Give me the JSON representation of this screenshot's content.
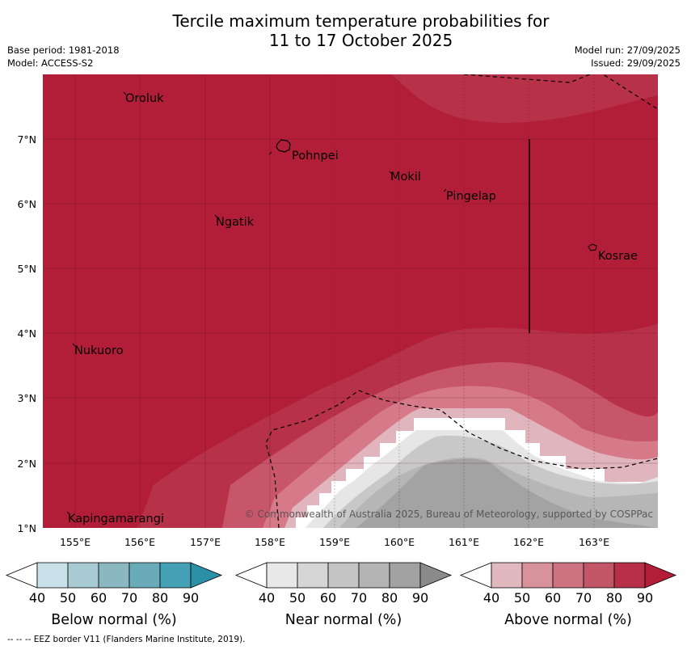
{
  "title": {
    "line1": "Tercile maximum temperature probabilities for",
    "line2": "11 to 17 October 2025"
  },
  "meta": {
    "base_period": "Base period: 1981-2018",
    "model": "Model: ACCESS-S2",
    "model_run": "Model run: 27/09/2025",
    "issued": "Issued: 29/09/2025"
  },
  "map": {
    "lon_labels": [
      "155°E",
      "156°E",
      "157°E",
      "158°E",
      "159°E",
      "160°E",
      "161°E",
      "162°E",
      "163°E"
    ],
    "lat_labels": [
      "1°N",
      "2°N",
      "3°N",
      "4°N",
      "5°N",
      "6°N",
      "7°N"
    ],
    "places": [
      "Oroluk",
      "Pohnpei",
      "Mokil",
      "Pingelap",
      "Ngatik",
      "Kosrae",
      "Nukuoro",
      "Kapingamarangi"
    ],
    "copyright": "© Commonwealth of Australia 2025, Bureau of Meteorology, supported by COSPPac",
    "colors": {
      "above_90": "#b21e38",
      "above_80": "#b73149",
      "above_70": "#c8566a",
      "above_60": "#d67a89",
      "above_50": "#e0b5bd",
      "near_60": "#c8c8c8",
      "near_70": "#b6b6b6",
      "near_80": "#a3a3a3"
    }
  },
  "legends": [
    {
      "label": "Below normal (%)",
      "ticks": [
        "40",
        "50",
        "60",
        "70",
        "80",
        "90"
      ],
      "colors": [
        "#ffffff",
        "#c9e2e9",
        "#a8cbd3",
        "#8bb7c1",
        "#6aabba",
        "#44a0b4",
        "#2b8fa5"
      ]
    },
    {
      "label": "Near normal (%)",
      "ticks": [
        "40",
        "50",
        "60",
        "70",
        "80",
        "90"
      ],
      "colors": [
        "#ffffff",
        "#e8e8e8",
        "#d6d6d6",
        "#c4c4c4",
        "#b4b4b4",
        "#a2a2a2",
        "#8a8a8a"
      ]
    },
    {
      "label": "Above normal (%)",
      "ticks": [
        "40",
        "50",
        "60",
        "70",
        "80",
        "90"
      ],
      "colors": [
        "#ffffff",
        "#e2b8bf",
        "#d8929c",
        "#cc7280",
        "#c25566",
        "#b82f48",
        "#b21e38"
      ]
    }
  ],
  "footer": "--  --  -- EEZ border V11 (Flanders Marine Institute, 2019)."
}
